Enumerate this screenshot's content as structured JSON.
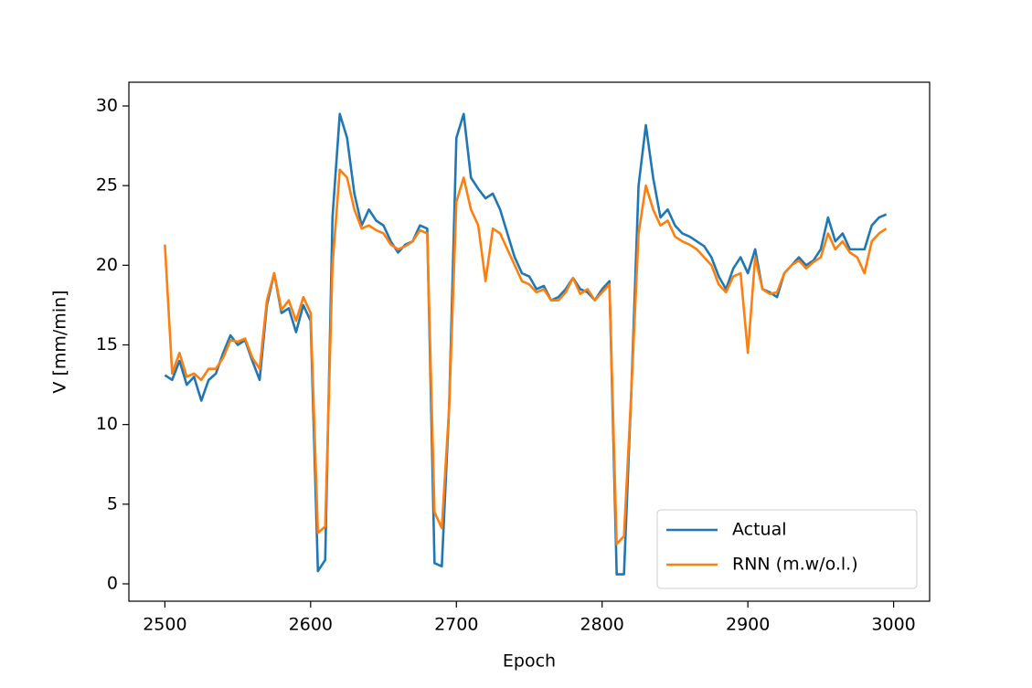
{
  "chart_data": {
    "type": "line",
    "xlabel": "Epoch",
    "ylabel": "V [mm/min]",
    "x": [
      2500,
      2505,
      2510,
      2515,
      2520,
      2525,
      2530,
      2535,
      2540,
      2545,
      2550,
      2555,
      2560,
      2565,
      2570,
      2575,
      2580,
      2585,
      2590,
      2595,
      2600,
      2605,
      2610,
      2615,
      2620,
      2625,
      2630,
      2635,
      2640,
      2645,
      2650,
      2655,
      2660,
      2665,
      2670,
      2675,
      2680,
      2685,
      2690,
      2695,
      2700,
      2705,
      2710,
      2715,
      2720,
      2725,
      2730,
      2735,
      2740,
      2745,
      2750,
      2755,
      2760,
      2765,
      2770,
      2775,
      2780,
      2785,
      2790,
      2795,
      2800,
      2805,
      2810,
      2815,
      2820,
      2825,
      2830,
      2835,
      2840,
      2845,
      2850,
      2855,
      2860,
      2865,
      2870,
      2875,
      2880,
      2885,
      2890,
      2895,
      2900,
      2905,
      2910,
      2915,
      2920,
      2925,
      2930,
      2935,
      2940,
      2945,
      2950,
      2955,
      2960,
      2965,
      2970,
      2975,
      2980,
      2985,
      2990,
      2995
    ],
    "series": [
      {
        "name": "Actual",
        "color": "#1f77b4",
        "values": [
          13.1,
          12.8,
          14.0,
          12.5,
          13.0,
          11.5,
          12.8,
          13.2,
          14.5,
          15.6,
          15.0,
          15.3,
          14.0,
          12.8,
          17.5,
          19.5,
          17.0,
          17.3,
          15.8,
          17.5,
          16.5,
          0.8,
          1.5,
          23.0,
          29.5,
          28.0,
          24.5,
          22.5,
          23.5,
          22.8,
          22.5,
          21.5,
          20.8,
          21.3,
          21.5,
          22.5,
          22.3,
          1.3,
          1.1,
          11.0,
          28.0,
          29.5,
          25.5,
          24.8,
          24.2,
          24.5,
          23.5,
          22.0,
          20.5,
          19.5,
          19.3,
          18.5,
          18.7,
          17.8,
          18.0,
          18.5,
          19.2,
          18.5,
          18.3,
          17.8,
          18.5,
          19.0,
          0.6,
          0.6,
          12.0,
          25.0,
          28.8,
          25.5,
          23.0,
          23.5,
          22.5,
          22.0,
          21.8,
          21.5,
          21.2,
          20.5,
          19.3,
          18.5,
          19.8,
          20.5,
          19.5,
          21.0,
          18.5,
          18.3,
          18.0,
          19.5,
          20.0,
          20.5,
          20.0,
          20.3,
          21.0,
          23.0,
          21.5,
          22.0,
          21.0,
          21.0,
          21.0,
          22.5,
          23.0,
          23.2
        ]
      },
      {
        "name": "RNN (m.w/o.l.)",
        "color": "#ff7f0e",
        "values": [
          21.3,
          13.2,
          14.5,
          13.0,
          13.2,
          12.8,
          13.5,
          13.5,
          14.2,
          15.3,
          15.2,
          15.4,
          14.2,
          13.5,
          17.8,
          19.5,
          17.2,
          17.8,
          16.5,
          18.0,
          17.0,
          3.2,
          3.6,
          20.0,
          26.0,
          25.5,
          23.5,
          22.3,
          22.5,
          22.2,
          22.0,
          21.3,
          21.0,
          21.2,
          21.5,
          22.2,
          22.0,
          4.5,
          3.5,
          11.0,
          24.0,
          25.5,
          23.5,
          22.5,
          19.0,
          22.3,
          22.0,
          21.0,
          20.0,
          19.0,
          18.8,
          18.3,
          18.5,
          17.8,
          17.8,
          18.3,
          19.2,
          18.2,
          18.5,
          17.8,
          18.3,
          18.8,
          2.5,
          3.0,
          12.0,
          22.0,
          25.0,
          23.5,
          22.5,
          22.8,
          21.8,
          21.5,
          21.3,
          21.0,
          20.5,
          20.0,
          18.8,
          18.3,
          19.3,
          19.5,
          14.5,
          20.5,
          18.5,
          18.2,
          18.3,
          19.5,
          20.0,
          20.3,
          19.8,
          20.2,
          20.5,
          22.0,
          21.0,
          21.5,
          20.8,
          20.5,
          19.5,
          21.5,
          22.0,
          22.3
        ]
      }
    ],
    "xlim": [
      2475.3,
      3024.7
    ],
    "xticks": [
      2500,
      2600,
      2700,
      2800,
      2900,
      3000
    ],
    "ylim": [
      -1.09,
      31.49
    ],
    "yticks": [
      0,
      5,
      10,
      15,
      20,
      25,
      30
    ],
    "grid": false,
    "legend": "lower right"
  }
}
